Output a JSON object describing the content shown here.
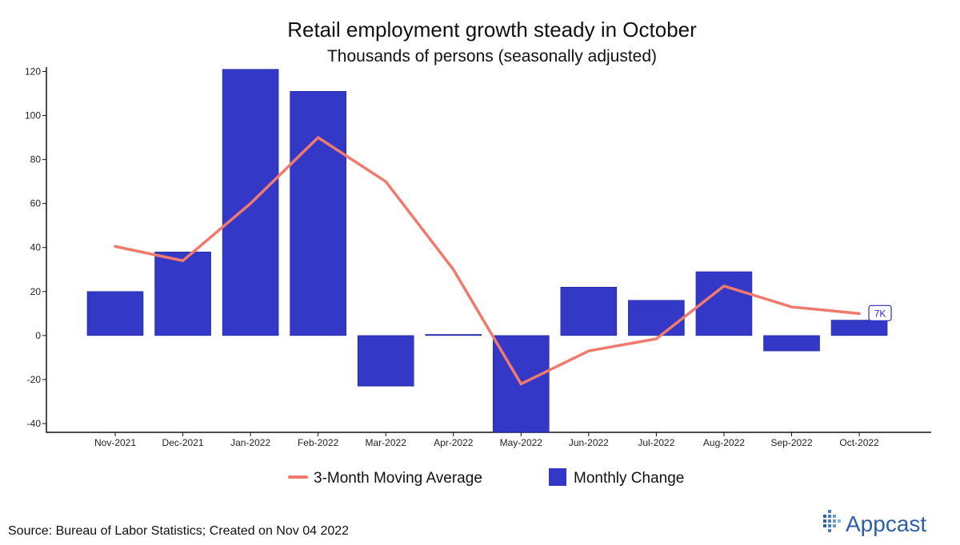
{
  "chart_data": {
    "type": "bar",
    "title": "Retail employment growth steady in October",
    "subtitle": "Thousands of persons (seasonally adjusted)",
    "categories": [
      "Nov-2021",
      "Dec-2021",
      "Jan-2022",
      "Feb-2022",
      "Mar-2022",
      "Apr-2022",
      "May-2022",
      "Jun-2022",
      "Jul-2022",
      "Aug-2022",
      "Sep-2022",
      "Oct-2022"
    ],
    "series": [
      {
        "name": "Monthly Change",
        "type": "bar",
        "color": "#3338c6",
        "values": [
          20,
          38,
          121,
          111,
          -23,
          0.5,
          -44,
          22,
          16,
          29,
          -7,
          7
        ]
      },
      {
        "name": "3-Month Moving Average",
        "type": "line",
        "color": "#f07a6e",
        "values": [
          40.5,
          34,
          60,
          90,
          70,
          30,
          -22,
          -7,
          -1.5,
          22.5,
          13,
          10
        ]
      }
    ],
    "ylim": [
      -44,
      122
    ],
    "yticks": [
      -40,
      -20,
      0,
      20,
      40,
      60,
      80,
      100,
      120
    ],
    "grid": false,
    "legend": "bottom",
    "annotation": {
      "label": "7K",
      "category": "Oct-2022"
    }
  },
  "footer": {
    "source": "Source: Bureau of Labor Statistics; Created on Nov 04 2022",
    "brand": "Appcast"
  }
}
